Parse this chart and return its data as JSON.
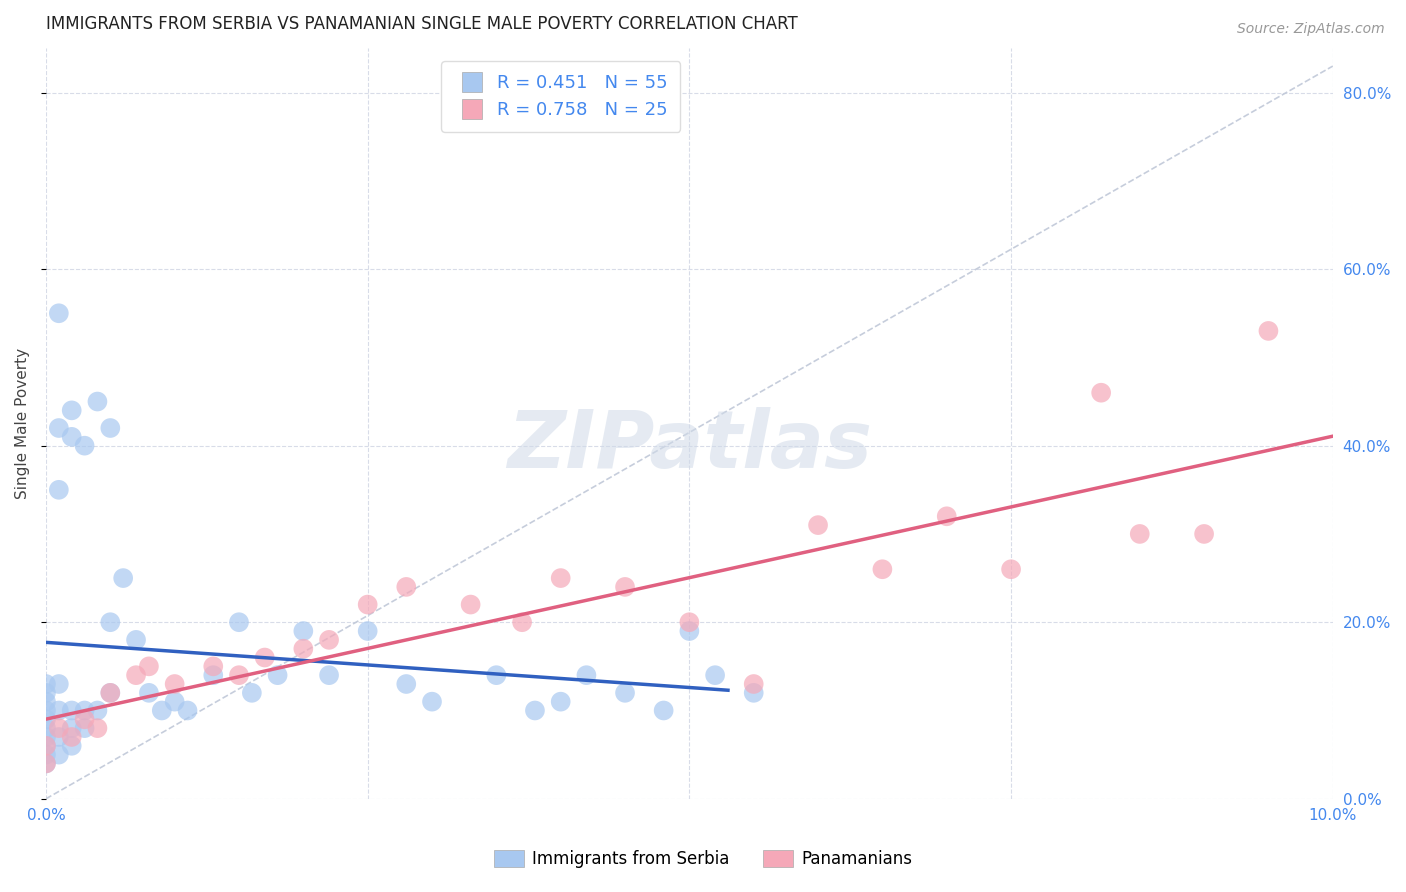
{
  "title": "IMMIGRANTS FROM SERBIA VS PANAMANIAN SINGLE MALE POVERTY CORRELATION CHART",
  "source": "Source: ZipAtlas.com",
  "ylabel": "Single Male Poverty",
  "xlim": [
    0.0,
    0.1
  ],
  "ylim": [
    0.0,
    0.85
  ],
  "y_ticks": [
    0.0,
    0.2,
    0.4,
    0.6,
    0.8
  ],
  "x_ticks": [
    0.0,
    0.025,
    0.05,
    0.075,
    0.1
  ],
  "serbia_R": 0.451,
  "serbia_N": 55,
  "panama_R": 0.758,
  "panama_N": 25,
  "serbia_color": "#a8c8f0",
  "panama_color": "#f5a8b8",
  "serbia_line_color": "#3060c0",
  "panama_line_color": "#e06080",
  "ref_line_color": "#c0c8d8",
  "axis_tick_color": "#4488ee",
  "serbia_x": [
    0.0,
    0.0,
    0.0,
    0.0,
    0.0,
    0.0,
    0.0,
    0.0,
    0.0,
    0.0,
    0.001,
    0.001,
    0.001,
    0.001,
    0.001,
    0.001,
    0.001,
    0.002,
    0.002,
    0.002,
    0.002,
    0.002,
    0.003,
    0.003,
    0.003,
    0.004,
    0.004,
    0.005,
    0.005,
    0.005,
    0.006,
    0.007,
    0.008,
    0.009,
    0.01,
    0.011,
    0.013,
    0.015,
    0.016,
    0.018,
    0.02,
    0.022,
    0.025,
    0.028,
    0.03,
    0.035,
    0.038,
    0.04,
    0.042,
    0.045,
    0.048,
    0.05,
    0.052,
    0.055
  ],
  "serbia_y": [
    0.04,
    0.05,
    0.06,
    0.07,
    0.08,
    0.09,
    0.1,
    0.11,
    0.12,
    0.13,
    0.05,
    0.07,
    0.1,
    0.13,
    0.35,
    0.42,
    0.55,
    0.06,
    0.08,
    0.1,
    0.41,
    0.44,
    0.08,
    0.1,
    0.4,
    0.1,
    0.45,
    0.12,
    0.2,
    0.42,
    0.25,
    0.18,
    0.12,
    0.1,
    0.11,
    0.1,
    0.14,
    0.2,
    0.12,
    0.14,
    0.19,
    0.14,
    0.19,
    0.13,
    0.11,
    0.14,
    0.1,
    0.11,
    0.14,
    0.12,
    0.1,
    0.19,
    0.14,
    0.12
  ],
  "panama_x": [
    0.0,
    0.0,
    0.001,
    0.002,
    0.003,
    0.004,
    0.005,
    0.007,
    0.008,
    0.01,
    0.013,
    0.015,
    0.017,
    0.02,
    0.022,
    0.025,
    0.028,
    0.033,
    0.037,
    0.04,
    0.045,
    0.05,
    0.055,
    0.06,
    0.065,
    0.07,
    0.075,
    0.082,
    0.085,
    0.09,
    0.095
  ],
  "panama_y": [
    0.04,
    0.06,
    0.08,
    0.07,
    0.09,
    0.08,
    0.12,
    0.14,
    0.15,
    0.13,
    0.15,
    0.14,
    0.16,
    0.17,
    0.18,
    0.22,
    0.24,
    0.22,
    0.2,
    0.25,
    0.24,
    0.2,
    0.13,
    0.31,
    0.26,
    0.32,
    0.26,
    0.46,
    0.3,
    0.3,
    0.53
  ],
  "background_color": "#ffffff",
  "grid_color": "#d8dce8",
  "title_fontsize": 12,
  "label_fontsize": 11,
  "tick_fontsize": 11,
  "legend_fontsize": 13,
  "watermark_text": "ZIPatlas",
  "watermark_color": "#d0dae8"
}
